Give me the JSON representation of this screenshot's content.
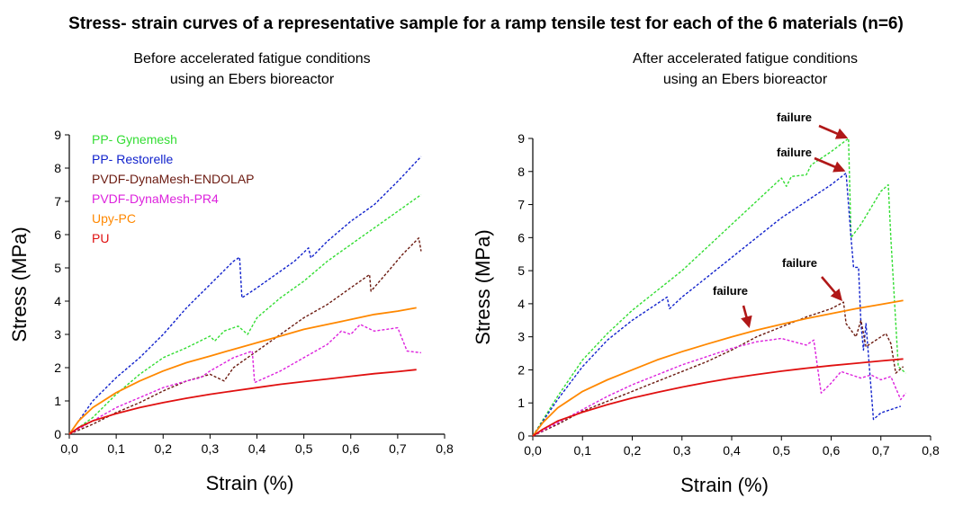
{
  "title": "Stress- strain curves of a representative sample for a ramp tensile test for each of the 6 materials (n=6)",
  "colors": {
    "PP- Gynemesh": "#33dd33",
    "PP- Restorelle": "#1122cc",
    "PVDF-DynaMesh-ENDOLAP": "#6b1a10",
    "PVDF-DynaMesh-PR4": "#dd22dd",
    "Upy-PC": "#ff8800",
    "PU": "#e01010",
    "annotation_arrow": "#b01818"
  },
  "chart_data": [
    {
      "type": "line",
      "subtitle_lines": [
        "Before accelerated fatigue conditions",
        "using an Ebers bioreactor"
      ],
      "xlabel": "Strain (%)",
      "ylabel": "Stress (MPa)",
      "xlim": [
        0,
        0.8
      ],
      "ylim": [
        0,
        9
      ],
      "x_ticks": [
        "0,0",
        "0,1",
        "0,2",
        "0,3",
        "0,4",
        "0,5",
        "0,6",
        "0,7",
        "0,8"
      ],
      "y_ticks": [
        "0",
        "1",
        "2",
        "3",
        "4",
        "5",
        "6",
        "7",
        "8",
        "9"
      ],
      "grid": false,
      "legend_position": "top-left",
      "legend": [
        "PP- Gynemesh",
        "PP- Restorelle",
        "PVDF-DynaMesh-ENDOLAP",
        "PVDF-DynaMesh-PR4",
        "Upy-PC",
        "PU"
      ],
      "series": [
        {
          "name": "PP- Gynemesh",
          "dashed": true,
          "points": [
            [
              0,
              0
            ],
            [
              0.05,
              0.5
            ],
            [
              0.1,
              1.2
            ],
            [
              0.15,
              1.8
            ],
            [
              0.2,
              2.3
            ],
            [
              0.25,
              2.6
            ],
            [
              0.3,
              2.95
            ],
            [
              0.31,
              2.8
            ],
            [
              0.33,
              3.1
            ],
            [
              0.36,
              3.25
            ],
            [
              0.38,
              3.0
            ],
            [
              0.4,
              3.5
            ],
            [
              0.45,
              4.1
            ],
            [
              0.5,
              4.6
            ],
            [
              0.55,
              5.2
            ],
            [
              0.6,
              5.7
            ],
            [
              0.65,
              6.2
            ],
            [
              0.7,
              6.7
            ],
            [
              0.75,
              7.2
            ]
          ]
        },
        {
          "name": "PP- Restorelle",
          "dashed": true,
          "points": [
            [
              0,
              0
            ],
            [
              0.05,
              1.0
            ],
            [
              0.1,
              1.7
            ],
            [
              0.15,
              2.3
            ],
            [
              0.2,
              3.0
            ],
            [
              0.25,
              3.8
            ],
            [
              0.3,
              4.5
            ],
            [
              0.35,
              5.2
            ],
            [
              0.363,
              5.32
            ],
            [
              0.368,
              4.1
            ],
            [
              0.4,
              4.4
            ],
            [
              0.45,
              4.9
            ],
            [
              0.48,
              5.2
            ],
            [
              0.51,
              5.6
            ],
            [
              0.515,
              5.3
            ],
            [
              0.55,
              5.8
            ],
            [
              0.6,
              6.4
            ],
            [
              0.65,
              6.9
            ],
            [
              0.7,
              7.6
            ],
            [
              0.75,
              8.35
            ]
          ]
        },
        {
          "name": "PVDF-DynaMesh-ENDOLAP",
          "dashed": true,
          "points": [
            [
              0,
              0
            ],
            [
              0.05,
              0.3
            ],
            [
              0.1,
              0.65
            ],
            [
              0.15,
              0.95
            ],
            [
              0.2,
              1.3
            ],
            [
              0.25,
              1.6
            ],
            [
              0.3,
              1.8
            ],
            [
              0.33,
              1.6
            ],
            [
              0.35,
              2.0
            ],
            [
              0.4,
              2.5
            ],
            [
              0.45,
              3.0
            ],
            [
              0.5,
              3.5
            ],
            [
              0.55,
              3.9
            ],
            [
              0.6,
              4.4
            ],
            [
              0.64,
              4.8
            ],
            [
              0.643,
              4.3
            ],
            [
              0.68,
              4.9
            ],
            [
              0.71,
              5.4
            ],
            [
              0.745,
              5.9
            ],
            [
              0.75,
              5.5
            ]
          ]
        },
        {
          "name": "PVDF-DynaMesh-PR4",
          "dashed": true,
          "points": [
            [
              0,
              0
            ],
            [
              0.05,
              0.4
            ],
            [
              0.1,
              0.8
            ],
            [
              0.15,
              1.1
            ],
            [
              0.2,
              1.4
            ],
            [
              0.25,
              1.6
            ],
            [
              0.28,
              1.7
            ],
            [
              0.3,
              1.9
            ],
            [
              0.35,
              2.3
            ],
            [
              0.39,
              2.5
            ],
            [
              0.395,
              1.55
            ],
            [
              0.45,
              1.9
            ],
            [
              0.5,
              2.3
            ],
            [
              0.55,
              2.7
            ],
            [
              0.58,
              3.1
            ],
            [
              0.6,
              3.0
            ],
            [
              0.62,
              3.3
            ],
            [
              0.65,
              3.1
            ],
            [
              0.7,
              3.2
            ],
            [
              0.72,
              2.5
            ],
            [
              0.75,
              2.45
            ]
          ]
        },
        {
          "name": "Upy-PC",
          "dashed": false,
          "points": [
            [
              0,
              0
            ],
            [
              0.02,
              0.4
            ],
            [
              0.05,
              0.8
            ],
            [
              0.1,
              1.25
            ],
            [
              0.15,
              1.6
            ],
            [
              0.2,
              1.9
            ],
            [
              0.25,
              2.15
            ],
            [
              0.3,
              2.35
            ],
            [
              0.35,
              2.55
            ],
            [
              0.4,
              2.75
            ],
            [
              0.45,
              2.95
            ],
            [
              0.5,
              3.15
            ],
            [
              0.55,
              3.3
            ],
            [
              0.6,
              3.45
            ],
            [
              0.65,
              3.6
            ],
            [
              0.7,
              3.7
            ],
            [
              0.74,
              3.8
            ]
          ]
        },
        {
          "name": "PU",
          "dashed": false,
          "points": [
            [
              0,
              0
            ],
            [
              0.02,
              0.2
            ],
            [
              0.05,
              0.4
            ],
            [
              0.1,
              0.62
            ],
            [
              0.15,
              0.8
            ],
            [
              0.2,
              0.95
            ],
            [
              0.25,
              1.08
            ],
            [
              0.3,
              1.2
            ],
            [
              0.35,
              1.3
            ],
            [
              0.4,
              1.4
            ],
            [
              0.45,
              1.5
            ],
            [
              0.5,
              1.58
            ],
            [
              0.55,
              1.66
            ],
            [
              0.6,
              1.74
            ],
            [
              0.65,
              1.82
            ],
            [
              0.7,
              1.88
            ],
            [
              0.74,
              1.94
            ]
          ]
        }
      ]
    },
    {
      "type": "line",
      "subtitle_lines": [
        "After accelerated fatigue conditions",
        "using an Ebers bioreactor"
      ],
      "xlabel": "Strain (%)",
      "ylabel": "Stress (MPa)",
      "xlim": [
        0,
        0.8
      ],
      "ylim": [
        0,
        9
      ],
      "x_ticks": [
        "0,0",
        "0,1",
        "0,2",
        "0,3",
        "0,4",
        "0,5",
        "0,6",
        "0,7",
        "0,8"
      ],
      "y_ticks": [
        "0",
        "1",
        "2",
        "3",
        "4",
        "5",
        "6",
        "7",
        "8",
        "9"
      ],
      "grid": false,
      "annotations": [
        {
          "text": "failure",
          "x": 0.635,
          "y": 8.95
        },
        {
          "text": "failure",
          "x": 0.63,
          "y": 7.95
        },
        {
          "text": "failure",
          "x": 0.625,
          "y": 4.05
        },
        {
          "text": "failure",
          "x": 0.44,
          "y": 3.25
        }
      ],
      "series": [
        {
          "name": "PP- Gynemesh",
          "dashed": true,
          "points": [
            [
              0,
              0
            ],
            [
              0.05,
              1.2
            ],
            [
              0.1,
              2.3
            ],
            [
              0.15,
              3.1
            ],
            [
              0.2,
              3.8
            ],
            [
              0.25,
              4.4
            ],
            [
              0.3,
              5.0
            ],
            [
              0.35,
              5.7
            ],
            [
              0.4,
              6.4
            ],
            [
              0.45,
              7.1
            ],
            [
              0.5,
              7.8
            ],
            [
              0.51,
              7.55
            ],
            [
              0.52,
              7.85
            ],
            [
              0.55,
              7.9
            ],
            [
              0.56,
              8.2
            ],
            [
              0.6,
              8.6
            ],
            [
              0.635,
              9.0
            ],
            [
              0.64,
              6.0
            ],
            [
              0.66,
              6.4
            ],
            [
              0.7,
              7.4
            ],
            [
              0.715,
              7.6
            ],
            [
              0.72,
              6.0
            ],
            [
              0.735,
              2.1
            ],
            [
              0.75,
              1.9
            ]
          ]
        },
        {
          "name": "PP- Restorelle",
          "dashed": true,
          "points": [
            [
              0,
              0
            ],
            [
              0.05,
              1.1
            ],
            [
              0.1,
              2.1
            ],
            [
              0.15,
              2.9
            ],
            [
              0.2,
              3.5
            ],
            [
              0.25,
              4.0
            ],
            [
              0.27,
              4.2
            ],
            [
              0.275,
              3.85
            ],
            [
              0.3,
              4.2
            ],
            [
              0.35,
              4.8
            ],
            [
              0.4,
              5.4
            ],
            [
              0.45,
              6.0
            ],
            [
              0.5,
              6.6
            ],
            [
              0.55,
              7.1
            ],
            [
              0.6,
              7.6
            ],
            [
              0.63,
              7.95
            ],
            [
              0.64,
              6.0
            ],
            [
              0.645,
              5.1
            ],
            [
              0.655,
              5.1
            ],
            [
              0.66,
              3.4
            ],
            [
              0.665,
              2.6
            ],
            [
              0.67,
              3.4
            ],
            [
              0.685,
              0.5
            ],
            [
              0.7,
              0.7
            ],
            [
              0.74,
              0.9
            ]
          ]
        },
        {
          "name": "PVDF-DynaMesh-ENDOLAP",
          "dashed": true,
          "points": [
            [
              0,
              0
            ],
            [
              0.05,
              0.35
            ],
            [
              0.1,
              0.75
            ],
            [
              0.15,
              1.05
            ],
            [
              0.2,
              1.35
            ],
            [
              0.25,
              1.65
            ],
            [
              0.3,
              1.95
            ],
            [
              0.35,
              2.25
            ],
            [
              0.4,
              2.6
            ],
            [
              0.45,
              3.0
            ],
            [
              0.5,
              3.3
            ],
            [
              0.55,
              3.6
            ],
            [
              0.6,
              3.85
            ],
            [
              0.625,
              4.05
            ],
            [
              0.63,
              3.4
            ],
            [
              0.65,
              3.0
            ],
            [
              0.66,
              3.5
            ],
            [
              0.67,
              2.7
            ],
            [
              0.7,
              3.0
            ],
            [
              0.71,
              3.1
            ],
            [
              0.72,
              2.8
            ],
            [
              0.73,
              1.9
            ],
            [
              0.745,
              2.1
            ]
          ]
        },
        {
          "name": "PVDF-DynaMesh-PR4",
          "dashed": true,
          "points": [
            [
              0,
              0
            ],
            [
              0.05,
              0.4
            ],
            [
              0.1,
              0.8
            ],
            [
              0.15,
              1.2
            ],
            [
              0.2,
              1.55
            ],
            [
              0.25,
              1.85
            ],
            [
              0.3,
              2.15
            ],
            [
              0.35,
              2.4
            ],
            [
              0.4,
              2.65
            ],
            [
              0.45,
              2.85
            ],
            [
              0.5,
              2.95
            ],
            [
              0.55,
              2.75
            ],
            [
              0.565,
              2.9
            ],
            [
              0.58,
              1.3
            ],
            [
              0.6,
              1.6
            ],
            [
              0.62,
              1.95
            ],
            [
              0.64,
              1.85
            ],
            [
              0.66,
              1.75
            ],
            [
              0.68,
              1.85
            ],
            [
              0.7,
              1.7
            ],
            [
              0.72,
              1.8
            ],
            [
              0.74,
              1.1
            ],
            [
              0.75,
              1.3
            ]
          ]
        },
        {
          "name": "Upy-PC",
          "dashed": false,
          "points": [
            [
              0,
              0
            ],
            [
              0.02,
              0.4
            ],
            [
              0.05,
              0.85
            ],
            [
              0.1,
              1.35
            ],
            [
              0.15,
              1.7
            ],
            [
              0.2,
              2.0
            ],
            [
              0.25,
              2.3
            ],
            [
              0.3,
              2.55
            ],
            [
              0.35,
              2.78
            ],
            [
              0.4,
              3.0
            ],
            [
              0.45,
              3.2
            ],
            [
              0.5,
              3.38
            ],
            [
              0.55,
              3.55
            ],
            [
              0.6,
              3.7
            ],
            [
              0.65,
              3.85
            ],
            [
              0.7,
              3.98
            ],
            [
              0.745,
              4.1
            ]
          ]
        },
        {
          "name": "PU",
          "dashed": false,
          "points": [
            [
              0,
              0
            ],
            [
              0.02,
              0.2
            ],
            [
              0.05,
              0.45
            ],
            [
              0.1,
              0.72
            ],
            [
              0.15,
              0.95
            ],
            [
              0.2,
              1.15
            ],
            [
              0.25,
              1.32
            ],
            [
              0.3,
              1.48
            ],
            [
              0.35,
              1.62
            ],
            [
              0.4,
              1.75
            ],
            [
              0.45,
              1.86
            ],
            [
              0.5,
              1.96
            ],
            [
              0.55,
              2.05
            ],
            [
              0.6,
              2.13
            ],
            [
              0.65,
              2.2
            ],
            [
              0.7,
              2.27
            ],
            [
              0.745,
              2.33
            ]
          ]
        }
      ]
    }
  ]
}
